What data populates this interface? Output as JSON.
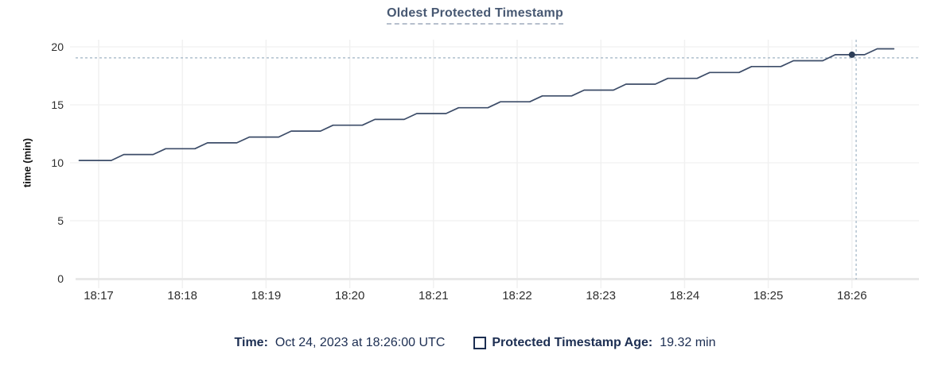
{
  "chart": {
    "title": "Oldest Protected Timestamp",
    "y_axis_label": "time (min)"
  },
  "legend": {
    "time_label": "Time:",
    "time_value": "Oct 24, 2023 at 18:26:00 UTC",
    "series_label": "Protected Timestamp Age:",
    "series_value": "19.32 min",
    "checkbox_icon": "empty-square"
  },
  "colors": {
    "line": "#3c4c68",
    "dot": "#2b3d57",
    "crosshair": "#9fb3c4",
    "grid_h": "#ededed",
    "grid_v": "#f1f1f1",
    "axis_band": "#e8e8e8",
    "title": "#475872",
    "legend_text": "#1c2e52",
    "tick_text": "#2e2e2e"
  },
  "chart_data": {
    "type": "line",
    "title": "Oldest Protected Timestamp",
    "xlabel": "",
    "ylabel": "time (min)",
    "x_ticks": [
      "18:17",
      "18:18",
      "18:19",
      "18:20",
      "18:21",
      "18:22",
      "18:23",
      "18:24",
      "18:25",
      "18:26"
    ],
    "y_ticks": [
      20,
      15,
      10,
      5,
      0
    ],
    "ylim": [
      0,
      20
    ],
    "grid": true,
    "legend_position": "bottom",
    "series": [
      {
        "name": "Protected Timestamp Age",
        "unit": "min",
        "points": [
          [
            "18:16:46",
            10.2
          ],
          [
            "18:17:09",
            10.2
          ],
          [
            "18:17:18",
            10.71
          ],
          [
            "18:17:39",
            10.71
          ],
          [
            "18:17:48",
            11.21
          ],
          [
            "18:18:09",
            11.21
          ],
          [
            "18:18:18",
            11.72
          ],
          [
            "18:18:39",
            11.72
          ],
          [
            "18:18:48",
            12.22
          ],
          [
            "18:19:09",
            12.22
          ],
          [
            "18:19:18",
            12.73
          ],
          [
            "18:19:39",
            12.73
          ],
          [
            "18:19:48",
            13.24
          ],
          [
            "18:20:09",
            13.24
          ],
          [
            "18:20:18",
            13.74
          ],
          [
            "18:20:39",
            13.74
          ],
          [
            "18:20:48",
            14.25
          ],
          [
            "18:21:09",
            14.25
          ],
          [
            "18:21:18",
            14.75
          ],
          [
            "18:21:39",
            14.75
          ],
          [
            "18:21:48",
            15.26
          ],
          [
            "18:22:09",
            15.26
          ],
          [
            "18:22:18",
            15.77
          ],
          [
            "18:22:39",
            15.77
          ],
          [
            "18:22:48",
            16.27
          ],
          [
            "18:23:09",
            16.27
          ],
          [
            "18:23:18",
            16.78
          ],
          [
            "18:23:39",
            16.78
          ],
          [
            "18:23:48",
            17.28
          ],
          [
            "18:24:09",
            17.28
          ],
          [
            "18:24:18",
            17.79
          ],
          [
            "18:24:39",
            17.79
          ],
          [
            "18:24:48",
            18.3
          ],
          [
            "18:25:09",
            18.3
          ],
          [
            "18:25:18",
            18.8
          ],
          [
            "18:25:39",
            18.8
          ],
          [
            "18:25:48",
            19.32
          ],
          [
            "18:26:09",
            19.32
          ],
          [
            "18:26:18",
            19.83
          ],
          [
            "18:26:30",
            19.83
          ]
        ]
      }
    ],
    "hover": {
      "point_time": "18:26:00",
      "point_value": 19.32,
      "crosshair_time": "18:26:03",
      "crosshair_value": 19.05
    }
  }
}
